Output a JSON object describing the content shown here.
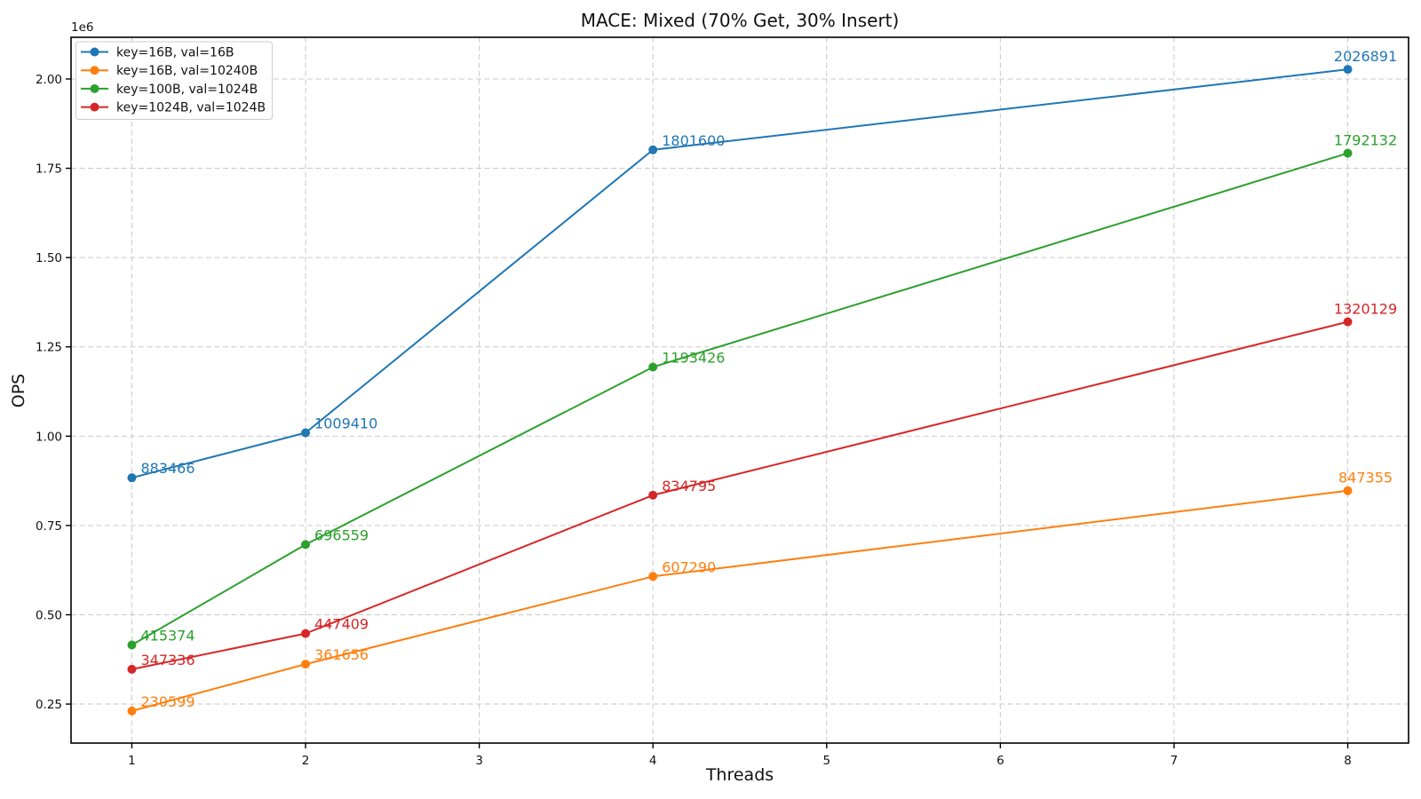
{
  "figure": {
    "background": "#ffffff"
  },
  "chart_data": {
    "type": "line",
    "title": "MACE: Mixed (70% Get, 30% Insert)",
    "xlabel": "Threads",
    "ylabel": "OPS",
    "y_offset_text": "1e6",
    "x": [
      1,
      2,
      4,
      8
    ],
    "xlim": [
      0.65,
      8.35
    ],
    "ylim": [
      140784,
      2116706
    ],
    "xticks": [
      1,
      2,
      3,
      4,
      5,
      6,
      7,
      8
    ],
    "xtick_labels": [
      "1",
      "2",
      "3",
      "4",
      "5",
      "6",
      "7",
      "8"
    ],
    "yticks": [
      250000,
      500000,
      750000,
      1000000,
      1250000,
      1500000,
      1750000,
      2000000
    ],
    "ytick_labels": [
      "0.25",
      "0.50",
      "0.75",
      "1.00",
      "1.25",
      "1.50",
      "1.75",
      "2.00"
    ],
    "grid": true,
    "grid_style": "dashed",
    "legend_position": "upper left",
    "point_labels": true,
    "series": [
      {
        "name": "key=16B, val=16B",
        "color": "#1f77b4",
        "values": [
          883466,
          1009410,
          1801600,
          2026891
        ]
      },
      {
        "name": "key=16B, val=10240B",
        "color": "#ff7f0e",
        "values": [
          230599,
          361656,
          607290,
          847355
        ]
      },
      {
        "name": "key=100B, val=1024B",
        "color": "#2ca02c",
        "values": [
          415374,
          696559,
          1193426,
          1792132
        ]
      },
      {
        "name": "key=1024B, val=1024B",
        "color": "#d62728",
        "values": [
          347336,
          447409,
          834795,
          1320129
        ]
      }
    ]
  }
}
